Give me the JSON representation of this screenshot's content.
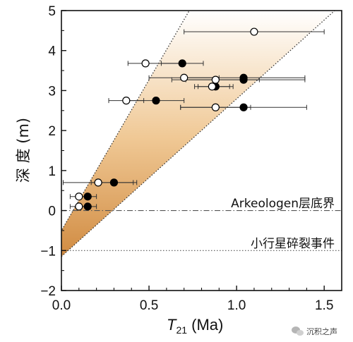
{
  "chart_data": {
    "type": "scatter",
    "xlabel_main": "T",
    "xlabel_sub": "21",
    "xlabel_unit": " (Ma)",
    "ylabel": "深 度 (m)",
    "xlim": [
      0,
      1.6
    ],
    "ylim": [
      -2,
      5
    ],
    "x_ticks": [
      "0.0",
      "0.5",
      "1.0",
      "1.5"
    ],
    "y_ticks": [
      "5",
      "4",
      "3",
      "2",
      "1",
      "0",
      "−1",
      "−2"
    ],
    "band": {
      "upper_line": [
        [
          0.0,
          -0.5
        ],
        [
          0.73,
          5.0
        ]
      ],
      "lower_line": [
        [
          0.0,
          -1.15
        ],
        [
          1.56,
          5.0
        ]
      ],
      "color_top": "#ffffff",
      "color_bottom": "#c87a2a"
    },
    "reference_lines": [
      {
        "y": 0,
        "style": "dash-dot",
        "label": "Arkeologen层底界"
      },
      {
        "y": -1,
        "style": "dotted",
        "label": "小行星碎裂事件"
      }
    ],
    "series": [
      {
        "marker": "filled",
        "points": [
          {
            "x": 0.69,
            "y": 3.68,
            "xerr": [
              0.12,
              0.12
            ]
          },
          {
            "x": 1.04,
            "y": 3.32,
            "xerr": [
              0.35,
              0.35
            ]
          },
          {
            "x": 1.04,
            "y": 3.27,
            "xerr": [
              0.33,
              0.35
            ]
          },
          {
            "x": 0.88,
            "y": 3.1,
            "xerr": [
              0.1,
              0.1
            ]
          },
          {
            "x": 0.54,
            "y": 2.75,
            "xerr": [
              0.16,
              0.16
            ]
          },
          {
            "x": 1.04,
            "y": 2.58,
            "xerr": [
              0.36,
              0.36
            ]
          },
          {
            "x": 0.3,
            "y": 0.7,
            "xerr": [
              0.13,
              0.13
            ]
          },
          {
            "x": 0.15,
            "y": 0.35,
            "xerr": [
              0.05,
              0.05
            ]
          },
          {
            "x": 0.15,
            "y": 0.1,
            "xerr": [
              0.05,
              0.05
            ]
          }
        ]
      },
      {
        "marker": "open",
        "points": [
          {
            "x": 1.1,
            "y": 4.47,
            "xerr": [
              0.4,
              0.4
            ]
          },
          {
            "x": 0.48,
            "y": 3.68,
            "xerr": [
              0.1,
              0.2
            ]
          },
          {
            "x": 0.7,
            "y": 3.32,
            "xerr": [
              0.2,
              0.2
            ]
          },
          {
            "x": 0.88,
            "y": 3.27,
            "xerr": [
              0.25,
              0.25
            ]
          },
          {
            "x": 0.86,
            "y": 3.1,
            "xerr": [
              0.1,
              0.1
            ]
          },
          {
            "x": 0.37,
            "y": 2.75,
            "xerr": [
              0.1,
              0.1
            ]
          },
          {
            "x": 0.88,
            "y": 2.58,
            "xerr": [
              0.2,
              0.2
            ]
          },
          {
            "x": 0.21,
            "y": 0.7,
            "xerr": [
              0.2,
              0.2
            ]
          },
          {
            "x": 0.1,
            "y": 0.35,
            "xerr": [
              0.05,
              0.05
            ]
          },
          {
            "x": 0.1,
            "y": 0.1,
            "xerr": [
              0.05,
              0.05
            ]
          }
        ]
      }
    ],
    "styles": {
      "axis_color": "#111111",
      "marker_filled_color": "#000000",
      "marker_open_color": "#ffffff",
      "errorbar_color": "#333333"
    }
  },
  "watermark": {
    "text": "沉积之声",
    "icon": "wechat-icon"
  }
}
